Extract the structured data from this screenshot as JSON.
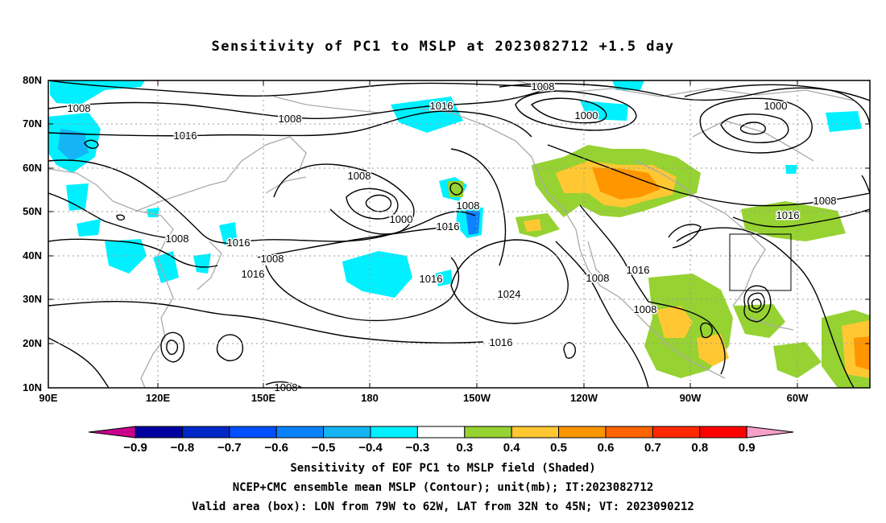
{
  "title": "Sensitivity of PC1 to MSLP at 2023082712 +1.5 day",
  "map": {
    "lat_labels": [
      "80N",
      "70N",
      "60N",
      "50N",
      "40N",
      "30N",
      "20N",
      "10N"
    ],
    "lon_labels": [
      "90E",
      "120E",
      "150E",
      "180",
      "150W",
      "120W",
      "90W",
      "60W"
    ],
    "contour_labels": [
      {
        "text": "1008"
      },
      {
        "text": "1008"
      },
      {
        "text": "1016"
      },
      {
        "text": "1016"
      },
      {
        "text": "1008"
      },
      {
        "text": "1000"
      },
      {
        "text": "1008"
      },
      {
        "text": "1000"
      },
      {
        "text": "1008"
      },
      {
        "text": "1016"
      },
      {
        "text": "1008"
      },
      {
        "text": "1016"
      },
      {
        "text": "1008"
      },
      {
        "text": "1016"
      },
      {
        "text": "1016"
      },
      {
        "text": "1024"
      },
      {
        "text": "1016"
      },
      {
        "text": "1008"
      },
      {
        "text": "1016"
      },
      {
        "text": "1008"
      },
      {
        "text": "1000"
      },
      {
        "text": "1008"
      },
      {
        "text": "1016"
      },
      {
        "text": "1008"
      }
    ],
    "valid_box": {
      "lon": [
        -79,
        -62
      ],
      "lat": [
        32,
        45
      ]
    }
  },
  "colorbar": {
    "labels": [
      "-0.9",
      "-0.8",
      "-0.7",
      "-0.6",
      "-0.5",
      "-0.4",
      "-0.3",
      "0.3",
      "0.4",
      "0.5",
      "0.6",
      "0.7",
      "0.8",
      "0.9"
    ],
    "colors": [
      "#c8008c",
      "#0000a0",
      "#0028c8",
      "#0050ff",
      "#0a82ff",
      "#14b4f5",
      "#00f0ff",
      "#ffffff",
      "#96d232",
      "#ffc832",
      "#ff9600",
      "#ff6400",
      "#ff2800",
      "#ff0000",
      "#f5a0c8"
    ]
  },
  "captions": {
    "line1": "Sensitivity of EOF PC1 to MSLP field (Shaded)",
    "line2": "NCEP+CMC ensemble mean MSLP (Contour); unit(mb); IT:2023082712",
    "line3": "Valid area (box): LON from 79W to 62W, LAT from 32N to 45N; VT: 2023090212"
  }
}
